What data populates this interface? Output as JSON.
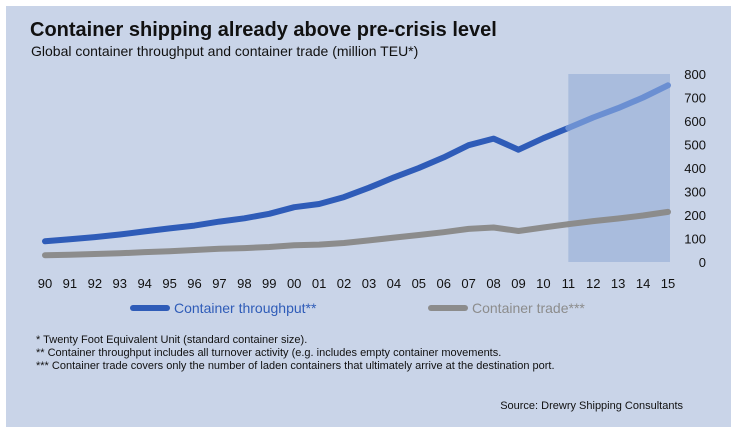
{
  "header": {
    "title": "Container shipping already above pre-crisis level",
    "subtitle": "Global container throughput and container trade (million TEU*)"
  },
  "footnotes": [
    "* Twenty Foot Equivalent Unit (standard container size).",
    "** Container throughput includes all turnover activity (e.g. includes empty container movements.",
    "*** Container trade covers only the number of laden containers that ultimately arrive at the destination port."
  ],
  "source": "Source: Drewry Shipping Consultants",
  "colors": {
    "background": "#c9d4e8",
    "forecast_band": "#a9bcdd",
    "throughput": "#2f5cb8",
    "throughput_forecast": "#6b8fd2",
    "trade": "#8c8c8c",
    "legend_throughput_text": "#2f5cb8",
    "legend_trade_text": "#8c8c8c"
  },
  "chart_data": {
    "type": "line",
    "title": "Container shipping already above pre-crisis level",
    "subtitle": "Global container throughput and container trade (million TEU*)",
    "categories": [
      "90",
      "91",
      "92",
      "93",
      "94",
      "95",
      "96",
      "97",
      "98",
      "99",
      "00",
      "01",
      "02",
      "03",
      "04",
      "05",
      "06",
      "07",
      "08",
      "09",
      "10",
      "11",
      "12",
      "13",
      "14",
      "15"
    ],
    "series": [
      {
        "name": "Container throughput**",
        "values": [
          88,
          97,
          106,
          117,
          130,
          143,
          155,
          172,
          186,
          205,
          233,
          247,
          276,
          316,
          360,
          400,
          445,
          497,
          525,
          478,
          527,
          570,
          615,
          655,
          700,
          752
        ]
      },
      {
        "name": "Container trade***",
        "values": [
          29,
          31,
          34,
          37,
          42,
          46,
          51,
          56,
          59,
          64,
          71,
          74,
          81,
          92,
          104,
          115,
          127,
          141,
          147,
          132,
          147,
          161,
          174,
          185,
          198,
          213
        ]
      }
    ],
    "ylim": [
      0,
      800
    ],
    "yticks": [
      0,
      100,
      200,
      300,
      400,
      500,
      600,
      700,
      800
    ],
    "y_axis_position": "right",
    "forecast_shading_from": "11",
    "grid": false,
    "legend_position": "bottom"
  }
}
